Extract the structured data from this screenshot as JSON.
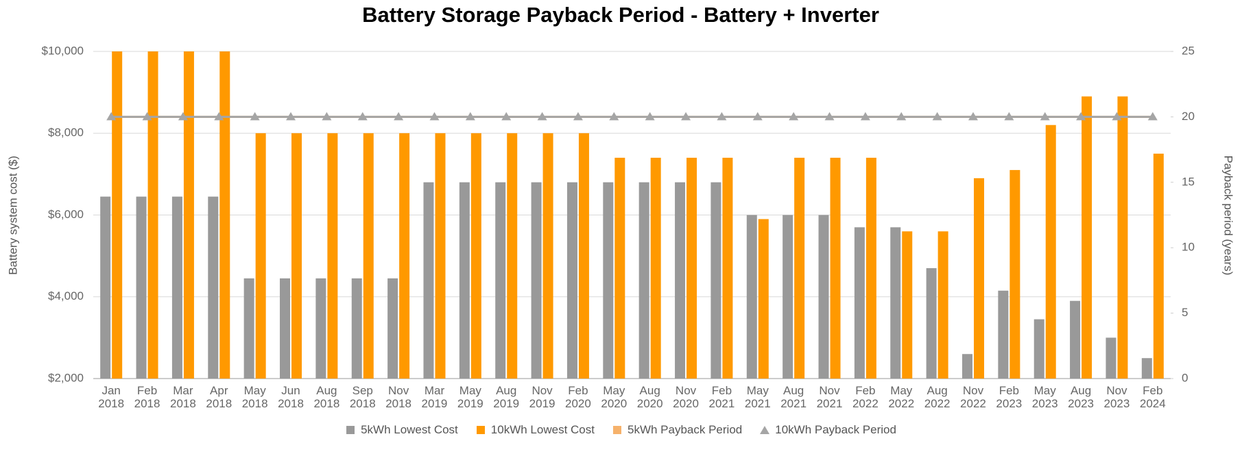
{
  "chart_data": {
    "type": "bar",
    "title": "Battery Storage Payback Period - Battery + Inverter",
    "y_label": "Battery system cost ($)",
    "y2_label": "Payback period (years)",
    "categories": [
      "Jan 2018",
      "Feb 2018",
      "Mar 2018",
      "Apr 2018",
      "May 2018",
      "Jun 2018",
      "Aug 2018",
      "Sep 2018",
      "Nov 2018",
      "Mar 2019",
      "May 2019",
      "Aug 2019",
      "Nov 2019",
      "Feb 2020",
      "May 2020",
      "Aug 2020",
      "Nov 2020",
      "Feb 2021",
      "May 2021",
      "Aug 2021",
      "Nov 2021",
      "Feb 2022",
      "May 2022",
      "Aug 2022",
      "Nov 2022",
      "Feb 2023",
      "May 2023",
      "Aug 2023",
      "Nov 2023",
      "Feb 2024"
    ],
    "series": [
      {
        "name": "5kWh Lowest Cost",
        "color": "#999999",
        "type": "bar",
        "values": [
          6450,
          6450,
          6450,
          6450,
          4450,
          4450,
          4450,
          4450,
          4450,
          6800,
          6800,
          6800,
          6800,
          6800,
          6800,
          6800,
          6800,
          6800,
          6000,
          6000,
          6000,
          5700,
          5700,
          4700,
          2600,
          4150,
          3450,
          3900,
          3000,
          2500
        ]
      },
      {
        "name": "10kWh Lowest Cost",
        "color": "#ff9900",
        "type": "bar",
        "values": [
          10000,
          10000,
          10000,
          10000,
          8000,
          8000,
          8000,
          8000,
          8000,
          8000,
          8000,
          8000,
          8000,
          8000,
          7400,
          7400,
          7400,
          7400,
          5900,
          7400,
          7400,
          7400,
          5600,
          5600,
          6900,
          7100,
          8200,
          8900,
          8900,
          7500
        ]
      },
      {
        "name": "5kWh Payback Period",
        "color": "#f6b26b",
        "type": "line",
        "axis": "y2",
        "values": [
          20,
          20,
          20,
          20,
          20,
          20,
          20,
          20,
          20,
          20,
          20,
          20,
          20,
          20,
          20,
          20,
          20,
          20,
          20,
          20,
          20,
          20,
          20,
          20,
          20,
          20,
          20,
          20,
          20,
          20
        ]
      },
      {
        "name": "10kWh Payback Period",
        "color": "#a5a5a5",
        "type": "line",
        "marker": "triangle",
        "axis": "y2",
        "values": [
          20,
          20,
          20,
          20,
          20,
          20,
          20,
          20,
          20,
          20,
          20,
          20,
          20,
          20,
          20,
          20,
          20,
          20,
          20,
          20,
          20,
          20,
          20,
          20,
          20,
          20,
          20,
          20,
          20,
          20
        ]
      }
    ],
    "ylim": [
      2000,
      10000
    ],
    "yticks": [
      {
        "value": 2000,
        "label": "$2,000"
      },
      {
        "value": 4000,
        "label": "$4,000"
      },
      {
        "value": 6000,
        "label": "$6,000"
      },
      {
        "value": 8000,
        "label": "$8,000"
      },
      {
        "value": 10000,
        "label": "$10,000"
      }
    ],
    "y2lim": [
      0,
      25
    ],
    "y2ticks": [
      0,
      5,
      10,
      15,
      20,
      25
    ],
    "grid": true,
    "legend": "bottom"
  }
}
